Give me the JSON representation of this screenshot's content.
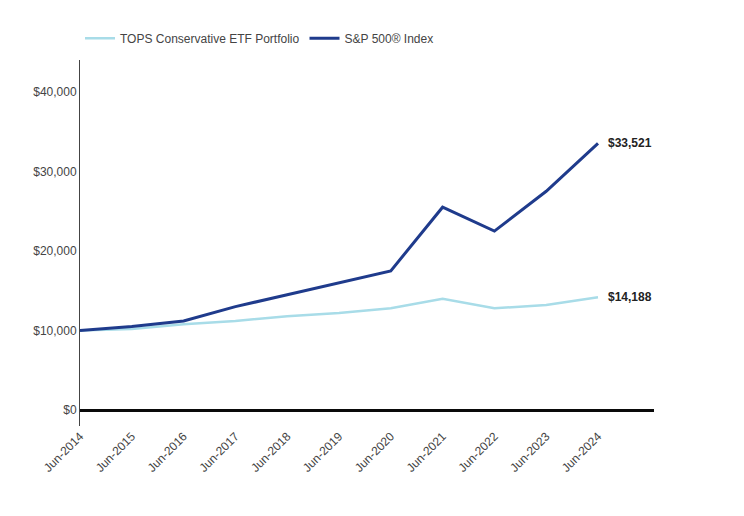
{
  "chart_data": {
    "type": "line",
    "categories": [
      "Jun-2014",
      "Jun-2015",
      "Jun-2016",
      "Jun-2017",
      "Jun-2018",
      "Jun-2019",
      "Jun-2020",
      "Jun-2021",
      "Jun-2022",
      "Jun-2023",
      "Jun-2024"
    ],
    "series": [
      {
        "name": "TOPS Conservative ETF Portfolio",
        "color": "#a8dce8",
        "values": [
          10000,
          10200,
          10800,
          11200,
          11800,
          12200,
          12800,
          14000,
          12800,
          13200,
          14188
        ]
      },
      {
        "name": "S&P 500® Index",
        "color": "#1f3b8c",
        "values": [
          10000,
          10500,
          11200,
          13000,
          14500,
          16000,
          17500,
          25500,
          22500,
          27500,
          33521
        ]
      }
    ],
    "ylim": [
      -2000,
      44000
    ],
    "yticks": [
      {
        "value": 0,
        "label": "$0"
      },
      {
        "value": 10000,
        "label": "$10,000"
      },
      {
        "value": 20000,
        "label": "$20,000"
      },
      {
        "value": 30000,
        "label": "$30,000"
      },
      {
        "value": 40000,
        "label": "$40,000"
      }
    ],
    "grid": false,
    "legend": "top",
    "annotations": [
      {
        "text": "$33,521",
        "x": "Jun-2024",
        "y": 33521
      },
      {
        "text": "$14,188",
        "x": "Jun-2024",
        "y": 14188
      }
    ]
  }
}
